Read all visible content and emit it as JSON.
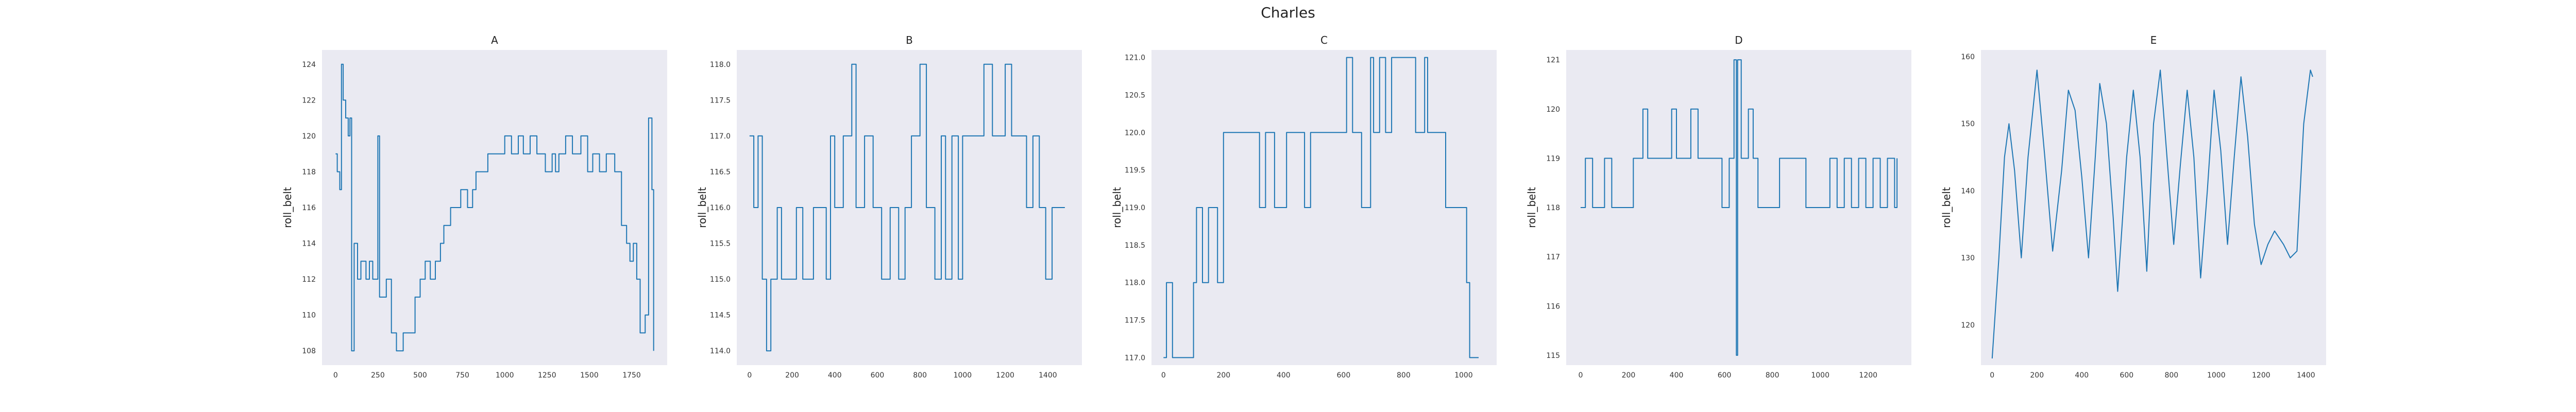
{
  "figure": {
    "suptitle": "Charles"
  },
  "colors": {
    "line": "#1f77b4",
    "panel_bg": "#eaeaf2"
  },
  "chart_data": [
    {
      "type": "line",
      "title": "A",
      "xlabel": "",
      "ylabel": "roll_belt",
      "xlim": [
        -80,
        1960
      ],
      "ylim": [
        107.2,
        124.8
      ],
      "xticks": [
        0,
        250,
        500,
        750,
        1000,
        1250,
        1500,
        1750
      ],
      "yticks": [
        108,
        110,
        112,
        114,
        116,
        118,
        120,
        122,
        124
      ],
      "grid": false,
      "step": true,
      "series": [
        {
          "values": [
            [
              0,
              119
            ],
            [
              10,
              118
            ],
            [
              25,
              117
            ],
            [
              35,
              124
            ],
            [
              45,
              122
            ],
            [
              60,
              121
            ],
            [
              75,
              120
            ],
            [
              85,
              121
            ],
            [
              95,
              108
            ],
            [
              110,
              114
            ],
            [
              130,
              112
            ],
            [
              150,
              113
            ],
            [
              180,
              112
            ],
            [
              200,
              113
            ],
            [
              220,
              112
            ],
            [
              250,
              120
            ],
            [
              260,
              111
            ],
            [
              290,
              111
            ],
            [
              300,
              112
            ],
            [
              330,
              109
            ],
            [
              360,
              108
            ],
            [
              400,
              109
            ],
            [
              450,
              109
            ],
            [
              470,
              111
            ],
            [
              500,
              112
            ],
            [
              530,
              113
            ],
            [
              560,
              112
            ],
            [
              590,
              113
            ],
            [
              620,
              114
            ],
            [
              640,
              115
            ],
            [
              680,
              116
            ],
            [
              710,
              116
            ],
            [
              740,
              117
            ],
            [
              780,
              116
            ],
            [
              810,
              117
            ],
            [
              830,
              118
            ],
            [
              870,
              118
            ],
            [
              900,
              119
            ],
            [
              960,
              119
            ],
            [
              1000,
              120
            ],
            [
              1040,
              119
            ],
            [
              1080,
              120
            ],
            [
              1110,
              119
            ],
            [
              1150,
              120
            ],
            [
              1190,
              119
            ],
            [
              1240,
              118
            ],
            [
              1280,
              119
            ],
            [
              1300,
              118
            ],
            [
              1320,
              119
            ],
            [
              1360,
              120
            ],
            [
              1400,
              119
            ],
            [
              1450,
              120
            ],
            [
              1490,
              118
            ],
            [
              1520,
              119
            ],
            [
              1560,
              118
            ],
            [
              1600,
              119
            ],
            [
              1650,
              118
            ],
            [
              1690,
              115
            ],
            [
              1720,
              114
            ],
            [
              1740,
              113
            ],
            [
              1760,
              114
            ],
            [
              1780,
              112
            ],
            [
              1800,
              109
            ],
            [
              1830,
              110
            ],
            [
              1850,
              121
            ],
            [
              1870,
              117
            ],
            [
              1880,
              108
            ]
          ]
        }
      ]
    },
    {
      "type": "line",
      "title": "B",
      "xlabel": "",
      "ylabel": "roll_belt",
      "xlim": [
        -60,
        1560
      ],
      "ylim": [
        113.8,
        118.2
      ],
      "xticks": [
        0,
        200,
        400,
        600,
        800,
        1000,
        1200,
        1400
      ],
      "yticks": [
        114.0,
        114.5,
        115.0,
        115.5,
        116.0,
        116.5,
        117.0,
        117.5,
        118.0
      ],
      "grid": false,
      "step": true,
      "series": [
        {
          "values": [
            [
              0,
              117
            ],
            [
              20,
              116
            ],
            [
              40,
              117
            ],
            [
              60,
              115
            ],
            [
              80,
              114
            ],
            [
              100,
              115
            ],
            [
              130,
              116
            ],
            [
              150,
              115
            ],
            [
              200,
              115
            ],
            [
              220,
              116
            ],
            [
              250,
              115
            ],
            [
              280,
              115
            ],
            [
              300,
              116
            ],
            [
              330,
              116
            ],
            [
              360,
              115
            ],
            [
              380,
              117
            ],
            [
              400,
              116
            ],
            [
              440,
              117
            ],
            [
              480,
              118
            ],
            [
              500,
              116
            ],
            [
              540,
              117
            ],
            [
              580,
              116
            ],
            [
              620,
              115
            ],
            [
              660,
              116
            ],
            [
              700,
              115
            ],
            [
              730,
              116
            ],
            [
              760,
              117
            ],
            [
              800,
              118
            ],
            [
              830,
              116
            ],
            [
              870,
              115
            ],
            [
              900,
              117
            ],
            [
              920,
              115
            ],
            [
              950,
              117
            ],
            [
              980,
              115
            ],
            [
              1000,
              117
            ],
            [
              1040,
              117
            ],
            [
              1080,
              117
            ],
            [
              1100,
              118
            ],
            [
              1140,
              117
            ],
            [
              1170,
              117
            ],
            [
              1200,
              118
            ],
            [
              1230,
              117
            ],
            [
              1260,
              117
            ],
            [
              1300,
              116
            ],
            [
              1330,
              117
            ],
            [
              1360,
              116
            ],
            [
              1390,
              115
            ],
            [
              1420,
              116
            ],
            [
              1450,
              116
            ],
            [
              1480,
              116
            ]
          ]
        }
      ]
    },
    {
      "type": "line",
      "title": "C",
      "xlabel": "",
      "ylabel": "roll_belt",
      "xlim": [
        -40,
        1110
      ],
      "ylim": [
        116.9,
        121.1
      ],
      "xticks": [
        0,
        200,
        400,
        600,
        800,
        1000
      ],
      "yticks": [
        117.0,
        117.5,
        118.0,
        118.5,
        119.0,
        119.5,
        120.0,
        120.5,
        121.0
      ],
      "grid": false,
      "step": true,
      "series": [
        {
          "values": [
            [
              0,
              117
            ],
            [
              10,
              118
            ],
            [
              30,
              117
            ],
            [
              70,
              117
            ],
            [
              100,
              118
            ],
            [
              110,
              119
            ],
            [
              130,
              118
            ],
            [
              150,
              119
            ],
            [
              180,
              118
            ],
            [
              200,
              120
            ],
            [
              300,
              120
            ],
            [
              320,
              119
            ],
            [
              340,
              120
            ],
            [
              370,
              119
            ],
            [
              400,
              119
            ],
            [
              410,
              120
            ],
            [
              440,
              120
            ],
            [
              470,
              119
            ],
            [
              490,
              120
            ],
            [
              540,
              120
            ],
            [
              580,
              120
            ],
            [
              610,
              121
            ],
            [
              630,
              120
            ],
            [
              660,
              119
            ],
            [
              690,
              121
            ],
            [
              700,
              120
            ],
            [
              720,
              121
            ],
            [
              740,
              120
            ],
            [
              760,
              121
            ],
            [
              840,
              120
            ],
            [
              870,
              121
            ],
            [
              880,
              120
            ],
            [
              940,
              119
            ],
            [
              960,
              119
            ],
            [
              1010,
              118
            ],
            [
              1020,
              117
            ],
            [
              1050,
              117
            ]
          ]
        }
      ]
    },
    {
      "type": "line",
      "title": "D",
      "xlabel": "",
      "ylabel": "roll_belt",
      "xlim": [
        -60,
        1380
      ],
      "ylim": [
        114.8,
        121.2
      ],
      "xticks": [
        0,
        200,
        400,
        600,
        800,
        1000,
        1200
      ],
      "yticks": [
        115,
        116,
        117,
        118,
        119,
        120,
        121
      ],
      "grid": false,
      "step": true,
      "series": [
        {
          "values": [
            [
              0,
              118
            ],
            [
              20,
              119
            ],
            [
              50,
              118
            ],
            [
              80,
              118
            ],
            [
              100,
              119
            ],
            [
              130,
              118
            ],
            [
              200,
              118
            ],
            [
              220,
              119
            ],
            [
              260,
              120
            ],
            [
              280,
              119
            ],
            [
              320,
              119
            ],
            [
              380,
              120
            ],
            [
              400,
              119
            ],
            [
              440,
              119
            ],
            [
              460,
              120
            ],
            [
              490,
              119
            ],
            [
              560,
              119
            ],
            [
              590,
              118
            ],
            [
              620,
              119
            ],
            [
              640,
              121
            ],
            [
              650,
              115
            ],
            [
              655,
              121
            ],
            [
              670,
              119
            ],
            [
              700,
              120
            ],
            [
              720,
              119
            ],
            [
              740,
              118
            ],
            [
              800,
              118
            ],
            [
              830,
              119
            ],
            [
              900,
              119
            ],
            [
              940,
              118
            ],
            [
              1000,
              118
            ],
            [
              1040,
              119
            ],
            [
              1070,
              118
            ],
            [
              1100,
              119
            ],
            [
              1130,
              118
            ],
            [
              1160,
              119
            ],
            [
              1190,
              118
            ],
            [
              1220,
              119
            ],
            [
              1250,
              118
            ],
            [
              1280,
              119
            ],
            [
              1310,
              118
            ],
            [
              1320,
              119
            ]
          ]
        }
      ]
    },
    {
      "type": "line",
      "title": "E",
      "xlabel": "",
      "ylabel": "roll_belt",
      "xlim": [
        -50,
        1490
      ],
      "ylim": [
        114,
        161
      ],
      "xticks": [
        0,
        200,
        400,
        600,
        800,
        1000,
        1200,
        1400
      ],
      "yticks": [
        120,
        130,
        140,
        150,
        160
      ],
      "grid": false,
      "step": false,
      "series": [
        {
          "values": [
            [
              0,
              115
            ],
            [
              30,
              130
            ],
            [
              55,
              145
            ],
            [
              75,
              150
            ],
            [
              100,
              143
            ],
            [
              130,
              130
            ],
            [
              160,
              145
            ],
            [
              200,
              158
            ],
            [
              235,
              145
            ],
            [
              270,
              131
            ],
            [
              310,
              143
            ],
            [
              340,
              155
            ],
            [
              370,
              152
            ],
            [
              400,
              142
            ],
            [
              430,
              130
            ],
            [
              460,
              145
            ],
            [
              480,
              156
            ],
            [
              510,
              150
            ],
            [
              540,
              136
            ],
            [
              560,
              125
            ],
            [
              600,
              145
            ],
            [
              630,
              155
            ],
            [
              660,
              145
            ],
            [
              690,
              128
            ],
            [
              720,
              150
            ],
            [
              750,
              158
            ],
            [
              780,
              145
            ],
            [
              810,
              132
            ],
            [
              840,
              144
            ],
            [
              870,
              155
            ],
            [
              900,
              145
            ],
            [
              930,
              127
            ],
            [
              960,
              140
            ],
            [
              990,
              155
            ],
            [
              1020,
              146
            ],
            [
              1050,
              132
            ],
            [
              1080,
              145
            ],
            [
              1110,
              157
            ],
            [
              1140,
              148
            ],
            [
              1170,
              135
            ],
            [
              1200,
              129
            ],
            [
              1230,
              132
            ],
            [
              1260,
              134
            ],
            [
              1300,
              132
            ],
            [
              1330,
              130
            ],
            [
              1360,
              131
            ],
            [
              1390,
              150
            ],
            [
              1420,
              158
            ],
            [
              1430,
              157
            ]
          ]
        }
      ]
    }
  ]
}
